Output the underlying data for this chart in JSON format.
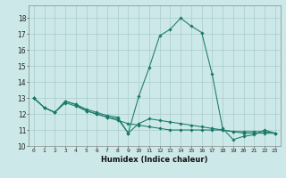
{
  "title": "",
  "xlabel": "Humidex (Indice chaleur)",
  "ylabel": "",
  "bg_color": "#cce8e8",
  "grid_color": "#aacccc",
  "line_color": "#1a7a6a",
  "xlim": [
    -0.5,
    23.5
  ],
  "ylim": [
    10,
    18.8
  ],
  "yticks": [
    10,
    11,
    12,
    13,
    14,
    15,
    16,
    17,
    18
  ],
  "xticks": [
    0,
    1,
    2,
    3,
    4,
    5,
    6,
    7,
    8,
    9,
    10,
    11,
    12,
    13,
    14,
    15,
    16,
    17,
    18,
    19,
    20,
    21,
    22,
    23
  ],
  "series": [
    [
      13.0,
      12.4,
      12.1,
      12.8,
      12.6,
      12.3,
      12.1,
      11.9,
      11.8,
      10.8,
      13.1,
      14.9,
      16.9,
      17.3,
      18.0,
      17.5,
      17.1,
      14.5,
      11.1,
      10.4,
      10.6,
      10.7,
      11.0,
      10.8
    ],
    [
      13.0,
      12.4,
      12.1,
      12.7,
      12.5,
      12.2,
      12.0,
      11.8,
      11.6,
      11.4,
      11.3,
      11.2,
      11.1,
      11.0,
      11.0,
      11.0,
      11.0,
      11.0,
      11.0,
      10.9,
      10.9,
      10.9,
      10.9,
      10.8
    ],
    [
      13.0,
      12.4,
      12.1,
      12.8,
      12.6,
      12.2,
      12.0,
      11.8,
      11.7,
      10.8,
      11.4,
      11.7,
      11.6,
      11.5,
      11.4,
      11.3,
      11.2,
      11.1,
      11.0,
      10.9,
      10.8,
      10.8,
      10.8,
      10.8
    ]
  ]
}
